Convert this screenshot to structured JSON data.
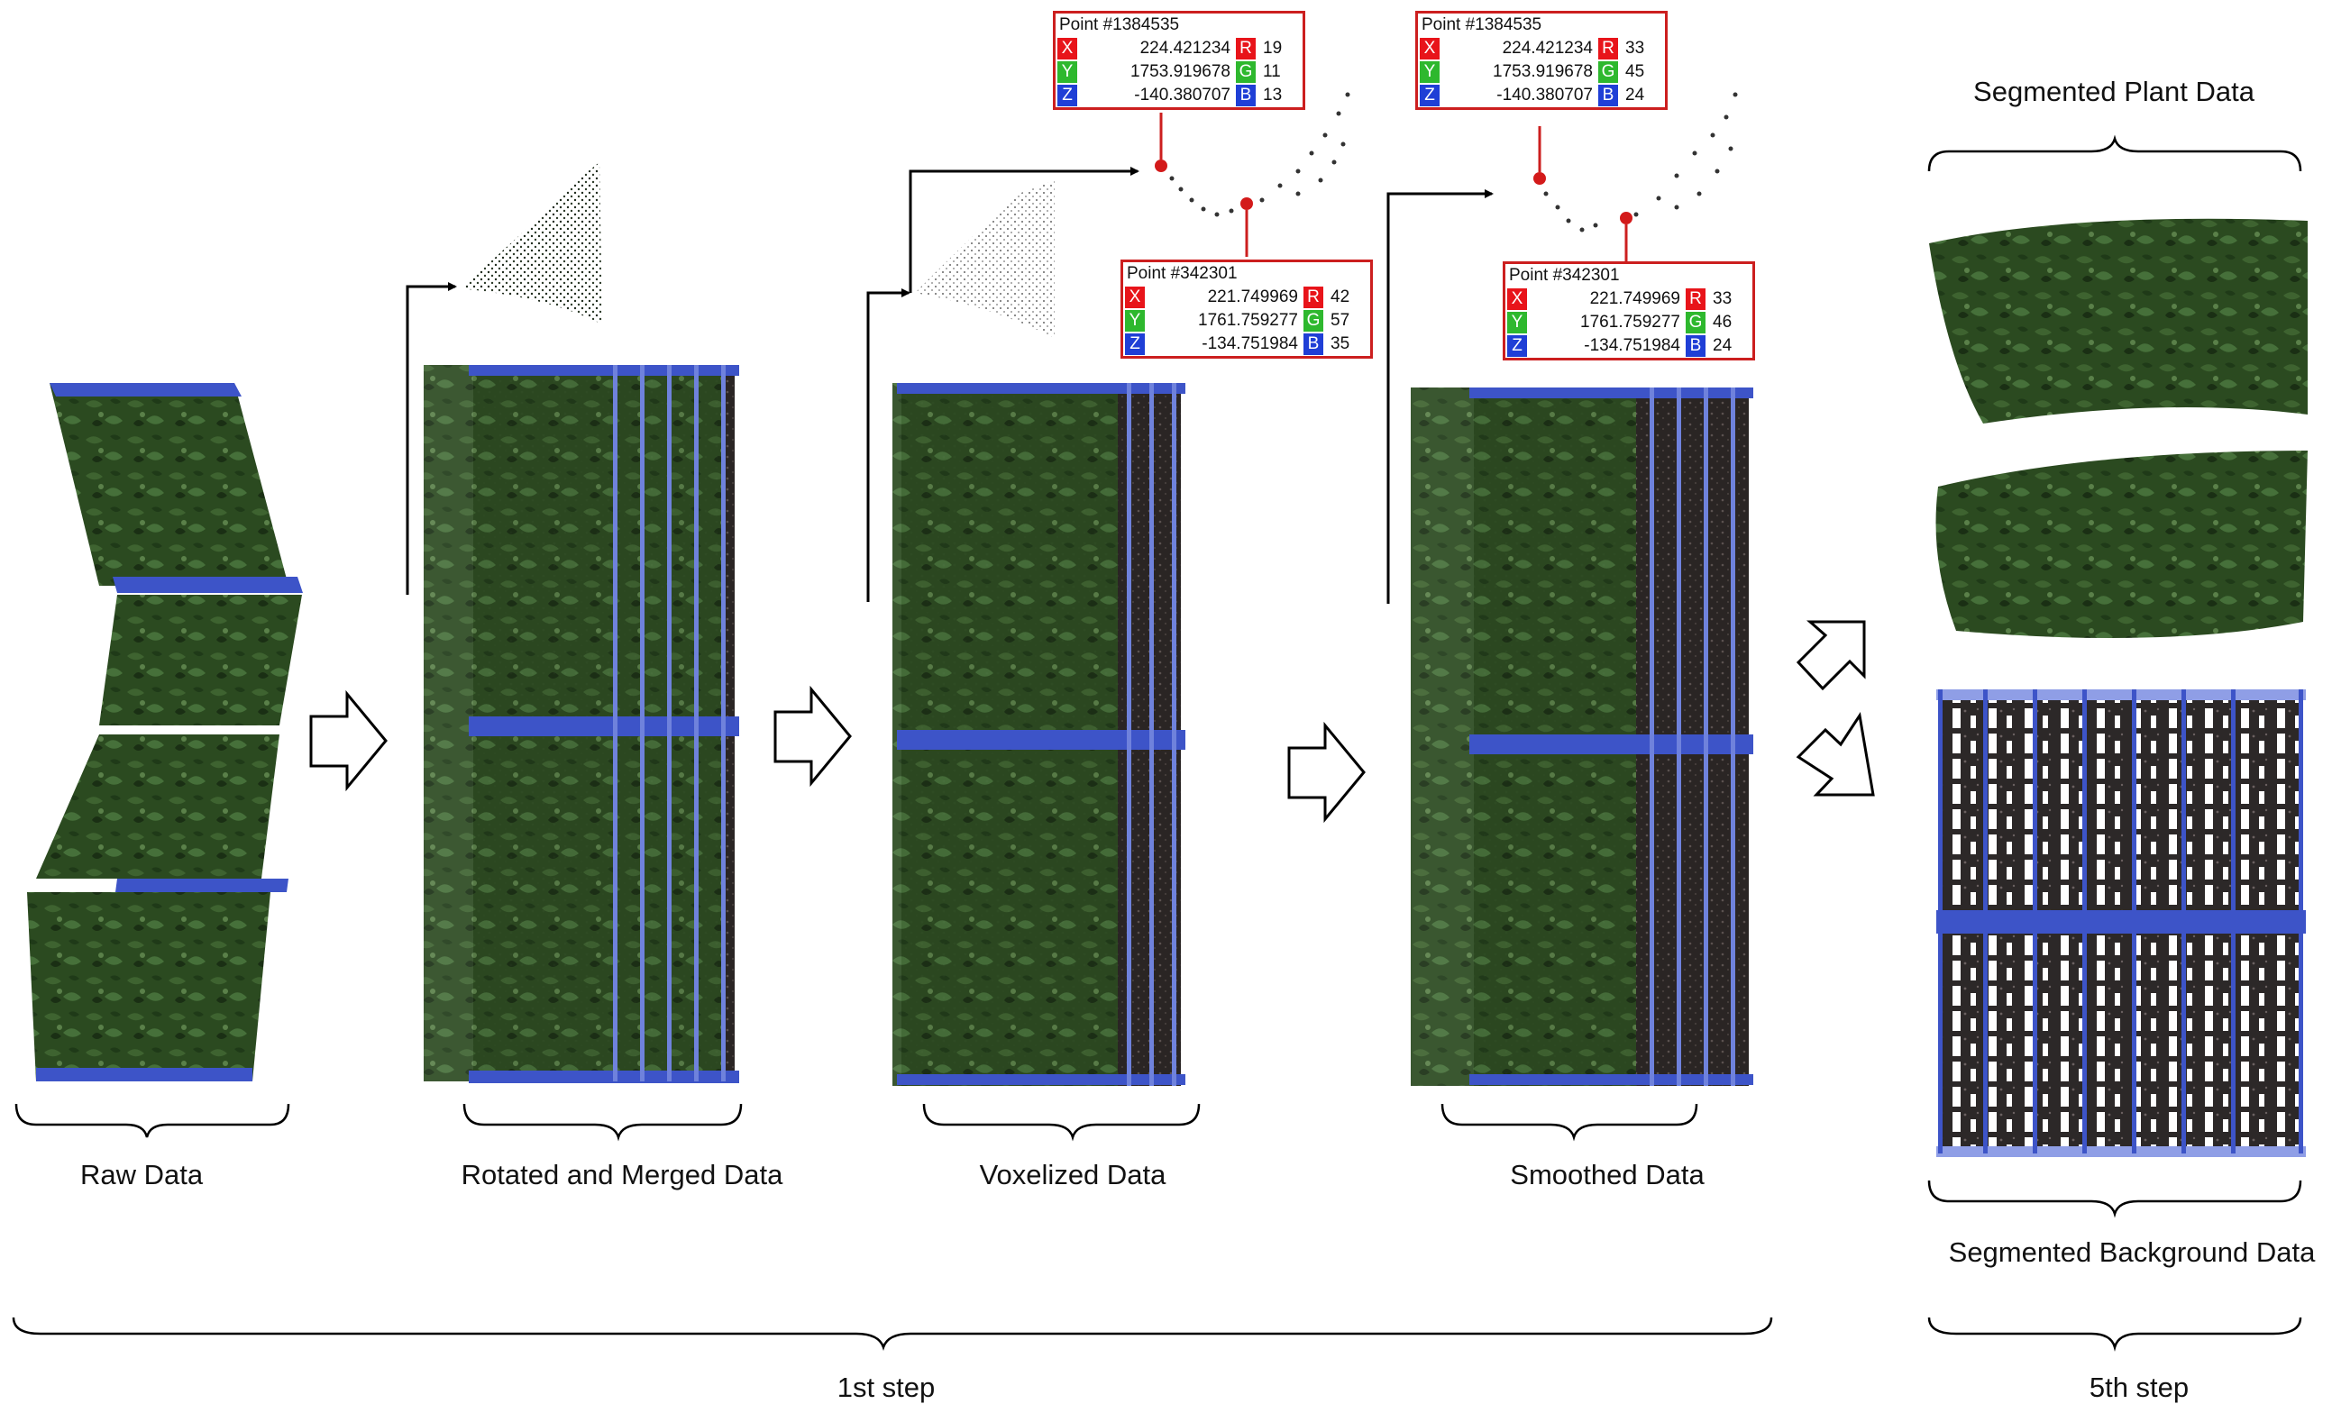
{
  "labels": {
    "raw": "Raw Data",
    "rotated": "Rotated and Merged Data",
    "voxelized": "Voxelized Data",
    "smoothed": "Smoothed Data",
    "plant": "Segmented Plant Data",
    "background": "Segmented Background Data",
    "step1": "1st step",
    "step5": "5th step"
  },
  "tooltips": {
    "vox_a": {
      "point": "Point #1384535",
      "x": "224.421234",
      "y": "1753.919678",
      "z": "-140.380707",
      "r": "19",
      "g": "11",
      "b": "13"
    },
    "vox_b": {
      "point": "Point #342301",
      "x": "221.749969",
      "y": "1761.759277",
      "z": "-134.751984",
      "r": "42",
      "g": "57",
      "b": "35"
    },
    "smo_a": {
      "point": "Point #1384535",
      "x": "224.421234",
      "y": "1753.919678",
      "z": "-140.380707",
      "r": "33",
      "g": "45",
      "b": "24"
    },
    "smo_b": {
      "point": "Point #342301",
      "x": "221.749969",
      "y": "1761.759277",
      "z": "-134.751984",
      "r": "33",
      "g": "46",
      "b": "24"
    }
  },
  "axis_letters": {
    "x": "X",
    "y": "Y",
    "z": "Z",
    "r": "R",
    "g": "G",
    "b": "B"
  },
  "colors": {
    "plant_green": "#2f4f22",
    "dark_green": "#1d3317",
    "frame_blue": "#3d54c8",
    "light_blue": "#8f9ee6",
    "soil_dark": "#2a2524",
    "tooltip_red": "#cc1f1f",
    "x_red": "#e8141a",
    "y_green": "#2eb82e",
    "z_blue": "#1f3fd6"
  }
}
